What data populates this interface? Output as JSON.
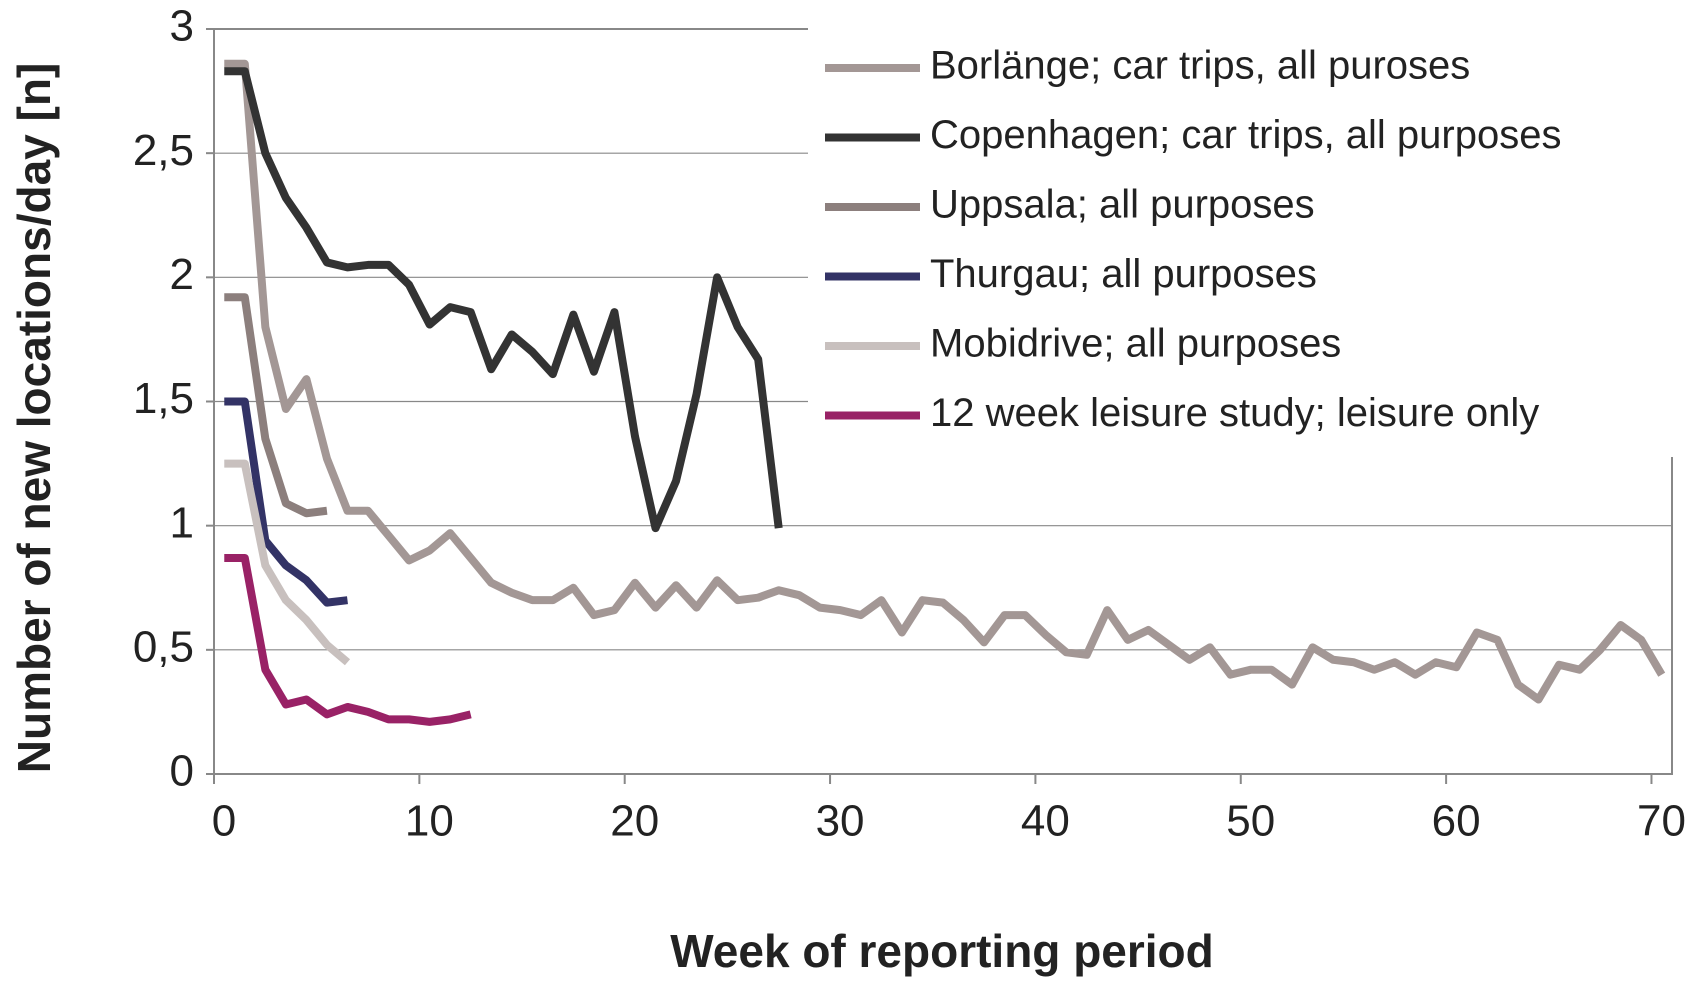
{
  "chart_data": {
    "type": "line",
    "xlabel": "Week of reporting period",
    "ylabel": "Number of new locations/day [n]",
    "xlim": [
      0,
      71
    ],
    "ylim": [
      0,
      3
    ],
    "xticks": [
      0,
      10,
      20,
      30,
      40,
      50,
      60,
      70
    ],
    "yticks": [
      0,
      {
        "value": 0.5,
        "label": "0,5"
      },
      1,
      {
        "value": 1.5,
        "label": "1,5"
      },
      2,
      {
        "value": 2.5,
        "label": "2,5"
      },
      3
    ],
    "grid": true,
    "legend": "upper right",
    "series": [
      {
        "name": "Borlänge; car trips, all puroses",
        "color": "#a39795",
        "x": [
          0.5,
          1.5,
          2.5,
          3.5,
          4.5,
          5.5,
          6.5,
          7.5,
          8.5,
          9.5,
          10.5,
          11.5,
          12.5,
          13.5,
          14.5,
          15.5,
          16.5,
          17.5,
          18.5,
          19.5,
          20.5,
          21.5,
          22.5,
          23.5,
          24.5,
          25.5,
          26.5,
          27.5,
          28.5,
          29.5,
          30.5,
          31.5,
          32.5,
          33.5,
          34.5,
          35.5,
          36.5,
          37.5,
          38.5,
          39.5,
          40.5,
          41.5,
          42.5,
          43.5,
          44.5,
          45.5,
          46.5,
          47.5,
          48.5,
          49.5,
          50.5,
          51.5,
          52.5,
          53.5,
          54.5,
          55.5,
          56.5,
          57.5,
          58.5,
          59.5,
          60.5,
          61.5,
          62.5,
          63.5,
          64.5,
          65.5,
          66.5,
          67.5,
          68.5,
          69.5,
          70.5
        ],
        "values": [
          2.86,
          2.86,
          1.8,
          1.47,
          1.59,
          1.27,
          1.06,
          1.06,
          0.96,
          0.86,
          0.9,
          0.97,
          0.87,
          0.77,
          0.73,
          0.7,
          0.7,
          0.75,
          0.64,
          0.66,
          0.77,
          0.67,
          0.76,
          0.67,
          0.78,
          0.7,
          0.71,
          0.74,
          0.72,
          0.67,
          0.66,
          0.64,
          0.7,
          0.57,
          0.7,
          0.69,
          0.62,
          0.53,
          0.64,
          0.64,
          0.56,
          0.49,
          0.48,
          0.66,
          0.54,
          0.58,
          0.52,
          0.46,
          0.51,
          0.4,
          0.42,
          0.42,
          0.36,
          0.51,
          0.46,
          0.45,
          0.42,
          0.45,
          0.4,
          0.45,
          0.43,
          0.57,
          0.54,
          0.36,
          0.3,
          0.44,
          0.42,
          0.5,
          0.6,
          0.54,
          0.4
        ]
      },
      {
        "name": "Copenhagen; car trips, all purposes",
        "color": "#333333",
        "x": [
          0.5,
          1.5,
          2.5,
          3.5,
          4.5,
          5.5,
          6.5,
          7.5,
          8.5,
          9.5,
          10.5,
          11.5,
          12.5,
          13.5,
          14.5,
          15.5,
          16.5,
          17.5,
          18.5,
          19.5,
          20.5,
          21.5,
          22.5,
          23.5,
          24.5,
          25.5,
          26.5,
          27.5
        ],
        "values": [
          2.83,
          2.83,
          2.5,
          2.32,
          2.2,
          2.06,
          2.04,
          2.05,
          2.05,
          1.97,
          1.81,
          1.88,
          1.86,
          1.63,
          1.77,
          1.7,
          1.61,
          1.85,
          1.62,
          1.86,
          1.36,
          0.99,
          1.18,
          1.53,
          2.0,
          1.8,
          1.67,
          0.99
        ]
      },
      {
        "name": "Uppsala; all purposes",
        "color": "#8c7f7d",
        "x": [
          0.5,
          1.5,
          2.5,
          3.5,
          4.5,
          5.5
        ],
        "values": [
          1.92,
          1.92,
          1.35,
          1.09,
          1.05,
          1.06
        ]
      },
      {
        "name": "Thurgau; all purposes",
        "color": "#333366",
        "x": [
          0.5,
          1.5,
          2.5,
          3.5,
          4.5,
          5.5,
          6.5
        ],
        "values": [
          1.5,
          1.5,
          0.94,
          0.84,
          0.78,
          0.69,
          0.7
        ]
      },
      {
        "name": "Mobidrive; all purposes",
        "color": "#c8c0be",
        "x": [
          0.5,
          1.5,
          2.5,
          3.5,
          4.5,
          5.5,
          6.5
        ],
        "values": [
          1.25,
          1.25,
          0.84,
          0.7,
          0.62,
          0.52,
          0.45
        ]
      },
      {
        "name": "12 week leisure study; leisure only",
        "color": "#992266",
        "x": [
          0.5,
          1.5,
          2.5,
          3.5,
          4.5,
          5.5,
          6.5,
          7.5,
          8.5,
          9.5,
          10.5,
          11.5,
          12.5
        ],
        "values": [
          0.87,
          0.87,
          0.42,
          0.28,
          0.3,
          0.24,
          0.27,
          0.25,
          0.22,
          0.22,
          0.21,
          0.22,
          0.24
        ]
      }
    ]
  }
}
